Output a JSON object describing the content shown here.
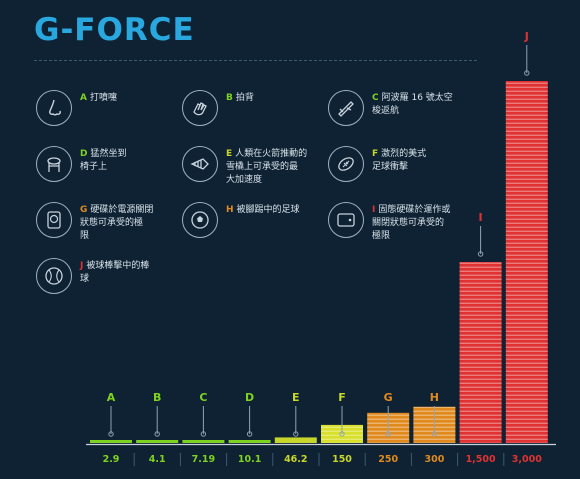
{
  "title": "G-FORCE",
  "colors": {
    "background": "#0e2233",
    "title": "#29a8e0",
    "axis": "#c9d3dc",
    "stem": "#8fa3b4"
  },
  "legend": [
    {
      "letter": "A",
      "icon": "nose-icon",
      "lines": [
        "打噴嚏"
      ],
      "color": "#7ed321"
    },
    {
      "letter": "B",
      "icon": "hand-pat-icon",
      "lines": [
        "拍背"
      ],
      "color": "#7ed321"
    },
    {
      "letter": "C",
      "icon": "space-shuttle-icon",
      "lines": [
        "阿波羅 16 號太空",
        "梭返航"
      ],
      "color": "#7ed321"
    },
    {
      "letter": "D",
      "icon": "chair-icon",
      "lines": [
        "猛然坐到",
        "椅子上"
      ],
      "color": "#7ed321"
    },
    {
      "letter": "E",
      "icon": "rocket-sled-icon",
      "lines": [
        "人類在火箭推動的",
        "雪橇上可承受的最",
        "大加速度"
      ],
      "color": "#c8d62b"
    },
    {
      "letter": "F",
      "icon": "football-icon",
      "lines": [
        "激烈的美式",
        "足球衝擊"
      ],
      "color": "#c8d62b"
    },
    {
      "letter": "G",
      "icon": "hard-drive-icon",
      "lines": [
        "硬碟於電源關閉",
        "狀態可承受的極",
        "限"
      ],
      "color": "#e08a1e"
    },
    {
      "letter": "H",
      "icon": "soccer-ball-icon",
      "lines": [
        "被腳踢中的足球"
      ],
      "color": "#e08a1e"
    },
    {
      "letter": "I",
      "icon": "hard-disk-platter-icon",
      "lines": [
        "固態硬碟於運作或",
        "關閉狀態可承受的",
        "極限"
      ],
      "color": "#e03232"
    },
    {
      "letter": "J",
      "icon": "baseball-icon",
      "lines": [
        "被球棒擊中的棒",
        "球"
      ],
      "color": "#e03232"
    }
  ],
  "chart_data": {
    "type": "bar",
    "categories": [
      "A",
      "B",
      "C",
      "D",
      "E",
      "F",
      "G",
      "H",
      "I",
      "J"
    ],
    "values": [
      2.9,
      4.1,
      7.19,
      10.1,
      46.2,
      150,
      250,
      300,
      1500,
      3000
    ],
    "value_labels": [
      "2.9",
      "4.1",
      "7.19",
      "10.1",
      "46.2",
      "150",
      "250",
      "300",
      "1,500",
      "3,000"
    ],
    "bar_colors": [
      "#7ed321",
      "#7ed321",
      "#7ed321",
      "#7ed321",
      "#c8d62b",
      "#d8e02a",
      "#e08a1e",
      "#e08a1e",
      "#e03232",
      "#e03232"
    ],
    "label_colors": [
      "#7ed321",
      "#7ed321",
      "#7ed321",
      "#7ed321",
      "#c8d62b",
      "#c8d62b",
      "#e08a1e",
      "#e08a1e",
      "#e03232",
      "#e03232"
    ],
    "ylim": [
      0,
      3000
    ],
    "grid": false
  }
}
